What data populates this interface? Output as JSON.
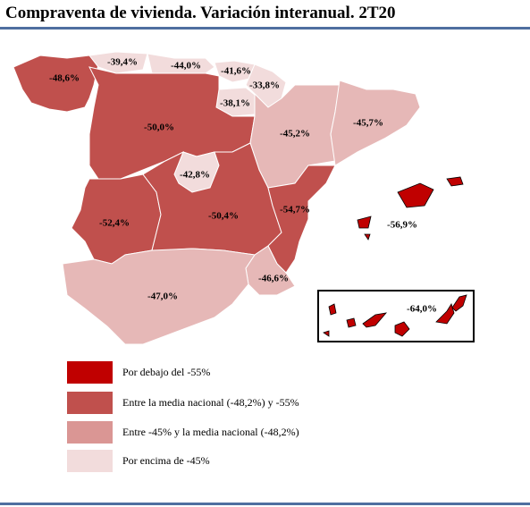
{
  "title": "Compraventa de vivienda. Variación interanual. 2T20",
  "regions": [
    {
      "label": "-48,6%",
      "color": "#c0504d"
    },
    {
      "label": "-39,4%",
      "color": "#f2dcdc"
    },
    {
      "label": "-44,0%",
      "color": "#f2dcdc"
    },
    {
      "label": "-41,6%",
      "color": "#f2dcdc"
    },
    {
      "label": "-33,8%",
      "color": "#f2dcdc"
    },
    {
      "label": "-38,1%",
      "color": "#f2dcdc"
    },
    {
      "label": "-50,0%",
      "color": "#c0504d"
    },
    {
      "label": "-45,2%",
      "color": "#e6b8b7"
    },
    {
      "label": "-45,7%",
      "color": "#e6b8b7"
    },
    {
      "label": "-42,8%",
      "color": "#f2dcdc"
    },
    {
      "label": "-52,4%",
      "color": "#c0504d"
    },
    {
      "label": "-50,4%",
      "color": "#c0504d"
    },
    {
      "label": "-54,7%",
      "color": "#c0504d"
    },
    {
      "label": "-56,9%",
      "color": "#c00000"
    },
    {
      "label": "-46,6%",
      "color": "#e6b8b7"
    },
    {
      "label": "-47,0%",
      "color": "#e6b8b7"
    },
    {
      "label": "-64,0%",
      "color": "#c00000"
    }
  ],
  "legend": [
    {
      "label": "Por debajo del -55%",
      "color": "#c00000"
    },
    {
      "label": "Entre la media nacional (-48,2%) y -55%",
      "color": "#c0504d"
    },
    {
      "label": "Entre -45% y la media nacional (-48,2%)",
      "color": "#da9694"
    },
    {
      "label": "Por encima de -45%",
      "color": "#f2dcdc"
    }
  ]
}
